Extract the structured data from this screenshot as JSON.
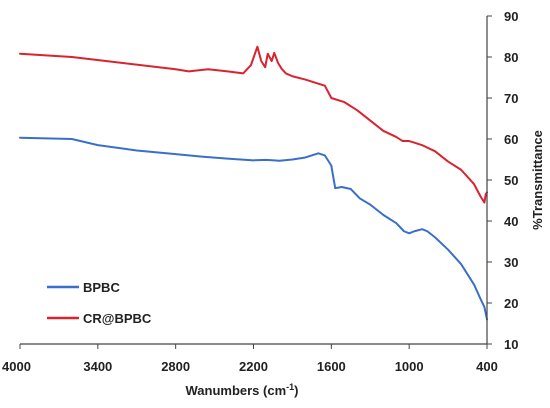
{
  "chart_data": {
    "type": "line",
    "xlabel": "Wanumbers (cm",
    "xlabel_sup": "-1",
    "xlabel_suffix": ")",
    "ylabel": "%Transmittance",
    "xlim": [
      4000,
      400
    ],
    "ylim": [
      10,
      90
    ],
    "x_ticks": [
      "4000",
      "3400",
      "2800",
      "2200",
      "1600",
      "1000",
      "400"
    ],
    "x_tick_values": [
      4000,
      3400,
      2800,
      2200,
      1600,
      1000,
      400
    ],
    "y_ticks": [
      "10",
      "20",
      "30",
      "40",
      "50",
      "60",
      "70",
      "80",
      "90"
    ],
    "y_tick_values": [
      10,
      20,
      30,
      40,
      50,
      60,
      70,
      80,
      90
    ],
    "axis_position": "right",
    "grid": false,
    "legend_position": "bottom-left",
    "series": [
      {
        "name": "BPBC",
        "color": "#3a6fc9",
        "x": [
          4000,
          3600,
          3400,
          3100,
          2800,
          2600,
          2400,
          2200,
          2100,
          2000,
          1900,
          1800,
          1700,
          1650,
          1600,
          1570,
          1520,
          1450,
          1380,
          1300,
          1200,
          1100,
          1040,
          1000,
          960,
          900,
          860,
          800,
          700,
          600,
          500,
          450,
          420,
          400
        ],
        "y": [
          60.3,
          60.0,
          58.5,
          57.2,
          56.3,
          55.7,
          55.2,
          54.8,
          54.9,
          54.7,
          55.0,
          55.5,
          56.5,
          56.0,
          53.5,
          48.0,
          48.3,
          47.8,
          45.5,
          44.0,
          41.5,
          39.5,
          37.5,
          37.0,
          37.5,
          38.0,
          37.5,
          36.0,
          33.0,
          29.5,
          24.5,
          21.0,
          19.0,
          16.0
        ]
      },
      {
        "name": "CR@BPBC",
        "color": "#d9232e",
        "x": [
          4000,
          3600,
          3200,
          2800,
          2700,
          2550,
          2400,
          2280,
          2220,
          2170,
          2140,
          2110,
          2090,
          2060,
          2040,
          2010,
          1980,
          1950,
          1900,
          1800,
          1700,
          1650,
          1600,
          1550,
          1500,
          1400,
          1300,
          1200,
          1100,
          1050,
          1000,
          950,
          900,
          800,
          700,
          600,
          500,
          450,
          420,
          410,
          400
        ],
        "y": [
          80.8,
          80.0,
          78.5,
          77.0,
          76.5,
          77.0,
          76.5,
          76.0,
          78.0,
          82.5,
          79.0,
          77.5,
          80.8,
          79.0,
          81.0,
          78.5,
          77.0,
          76.0,
          75.3,
          74.5,
          73.5,
          73.0,
          70.0,
          69.5,
          69.0,
          67.0,
          64.5,
          62.0,
          60.5,
          59.5,
          59.5,
          59.0,
          58.5,
          57.0,
          54.5,
          52.5,
          49.0,
          46.0,
          44.5,
          46.5,
          47.0
        ]
      }
    ]
  }
}
